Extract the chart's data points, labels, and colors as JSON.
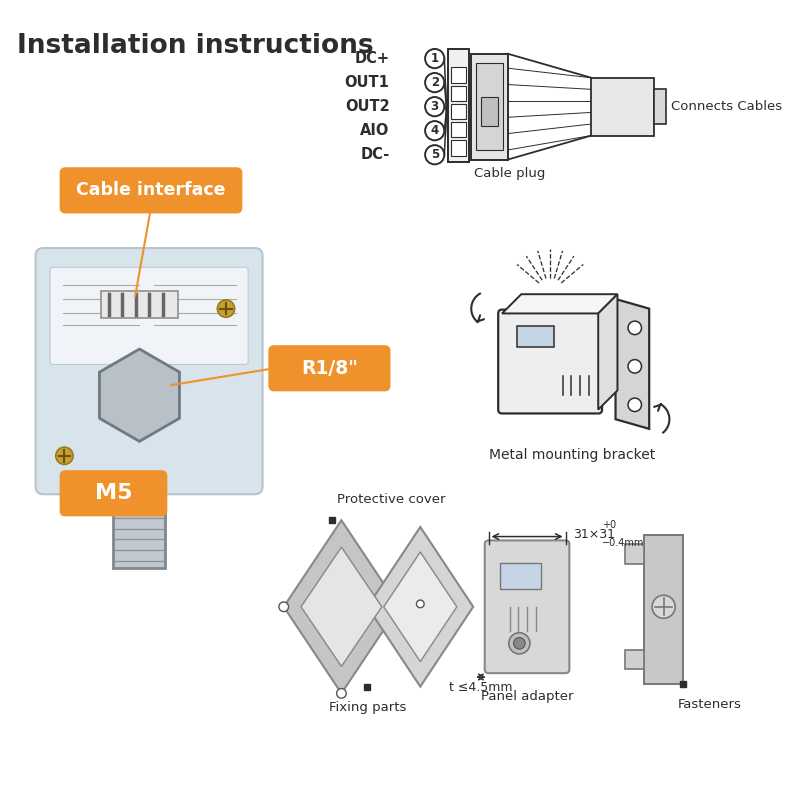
{
  "title": "Installation instructions",
  "bg_color": "#ffffff",
  "orange_color": "#F0922B",
  "dark_color": "#2d2d2d",
  "gray_color": "#888888",
  "light_gray": "#cccccc",
  "wire_labels": [
    "DC+",
    "OUT1",
    "OUT2",
    "AIO",
    "DC-"
  ],
  "wire_numbers": [
    "1",
    "2",
    "3",
    "4",
    "5"
  ],
  "cable_plug_label": "Cable plug",
  "connects_cables_label": "Connects Cables",
  "cable_interface_label": "Cable interface",
  "r18_label": "R1/8\"",
  "m5_label": "M5",
  "metal_bracket_label": "Metal mounting bracket",
  "protective_cover_label": "Protective cover",
  "fixing_parts_label": "Fixing parts",
  "panel_adapter_label": "Panel adapter",
  "fasteners_label": "Fasteners",
  "thickness_label": "t ≤4.5mm",
  "dim_text": "31×31",
  "dim_sup": "+0",
  "dim_sub": "−0.4mm"
}
